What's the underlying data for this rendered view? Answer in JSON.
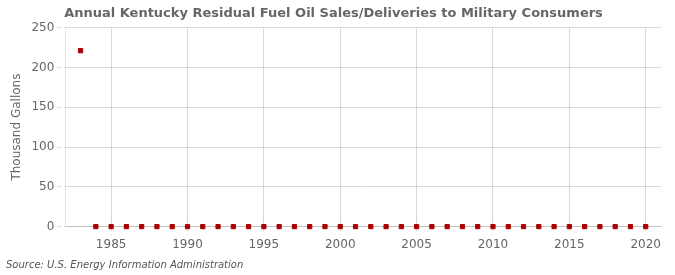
{
  "chart_data": {
    "type": "scatter",
    "title": "Annual Kentucky Residual Fuel Oil Sales/Deliveries to Military Consumers",
    "ylabel": "Thousand Gallons",
    "source": "Source: U.S. Energy Information Administration",
    "x": [
      1983,
      1984,
      1985,
      1986,
      1987,
      1988,
      1989,
      1990,
      1991,
      1992,
      1993,
      1994,
      1995,
      1996,
      1997,
      1998,
      1999,
      2000,
      2001,
      2002,
      2003,
      2004,
      2005,
      2006,
      2007,
      2008,
      2009,
      2010,
      2011,
      2012,
      2013,
      2014,
      2015,
      2016,
      2017,
      2018,
      2019,
      2020
    ],
    "values": [
      221,
      0,
      0,
      0,
      0,
      0,
      0,
      0,
      0,
      0,
      0,
      0,
      0,
      0,
      0,
      0,
      0,
      0,
      0,
      0,
      0,
      0,
      0,
      0,
      0,
      0,
      0,
      0,
      0,
      0,
      0,
      0,
      0,
      0,
      0,
      0,
      0,
      0
    ],
    "color": "#aa0000",
    "marker": "square",
    "xlim": [
      1982,
      2021
    ],
    "ylim": [
      0,
      250
    ],
    "xticks": [
      1985,
      1990,
      1995,
      2000,
      2005,
      2010,
      2015,
      2020
    ],
    "yticks": [
      0,
      50,
      100,
      150,
      200,
      250
    ],
    "grid": true
  }
}
